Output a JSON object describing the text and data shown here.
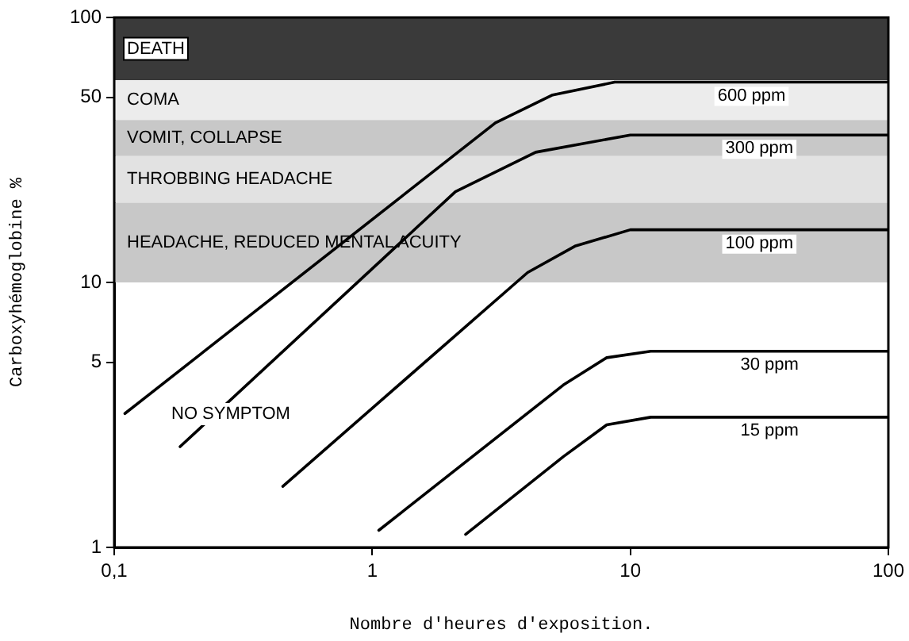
{
  "chart_data": {
    "type": "line",
    "xlabel": "Nombre d'heures d'exposition.",
    "ylabel": "Carboxyhémoglobine %",
    "log": "xy",
    "grid": false,
    "legend": false,
    "marker": "none",
    "xlim": [
      0.1,
      100
    ],
    "xticks": [
      {
        "value": 0.1,
        "label": "0,1"
      },
      1,
      10,
      100
    ],
    "ylim": [
      1,
      100
    ],
    "yticks": [
      1,
      5,
      10,
      50,
      100
    ],
    "bands": [
      {
        "axis": "y",
        "from": 58,
        "to": 100,
        "label": "DEATH",
        "color": "#3a3a3a"
      },
      {
        "axis": "y",
        "from": 41,
        "to": 58,
        "label": "COMA",
        "color": "#ececec"
      },
      {
        "axis": "y",
        "from": 30,
        "to": 41,
        "label": "VOMIT, COLLAPSE",
        "color": "#c8c8c8"
      },
      {
        "axis": "y",
        "from": 20,
        "to": 30,
        "label": "THROBBING HEADACHE",
        "color": "#e2e2e2"
      },
      {
        "axis": "y",
        "from": 10,
        "to": 20,
        "label": "HEADACHE, REDUCED MENTAL ACUITY",
        "color": "#c8c8c8"
      }
    ],
    "annotations": [
      "NO SYMPTOM"
    ],
    "series": [
      {
        "name": "600 ppm",
        "color": "#000000",
        "line_style": "solid",
        "x": [
          0.11,
          3.0,
          5.0,
          8.7,
          100
        ],
        "values": [
          3.2,
          40,
          51,
          57,
          57
        ]
      },
      {
        "name": "300 ppm",
        "color": "#000000",
        "line_style": "solid",
        "x": [
          0.18,
          2.1,
          4.3,
          10,
          100
        ],
        "values": [
          2.4,
          22,
          31,
          36,
          36
        ]
      },
      {
        "name": "100 ppm",
        "color": "#000000",
        "line_style": "solid",
        "x": [
          0.45,
          4.0,
          6.1,
          10,
          100
        ],
        "values": [
          1.7,
          10.9,
          13.7,
          15.8,
          15.8
        ]
      },
      {
        "name": "30 ppm",
        "color": "#000000",
        "line_style": "solid",
        "x": [
          1.06,
          5.5,
          8.1,
          12,
          100
        ],
        "values": [
          1.16,
          4.1,
          5.2,
          5.5,
          5.5
        ]
      },
      {
        "name": "15 ppm",
        "color": "#000000",
        "line_style": "solid",
        "x": [
          2.3,
          5.5,
          8.1,
          12,
          100
        ],
        "values": [
          1.12,
          2.2,
          2.9,
          3.1,
          3.1
        ]
      }
    ]
  }
}
